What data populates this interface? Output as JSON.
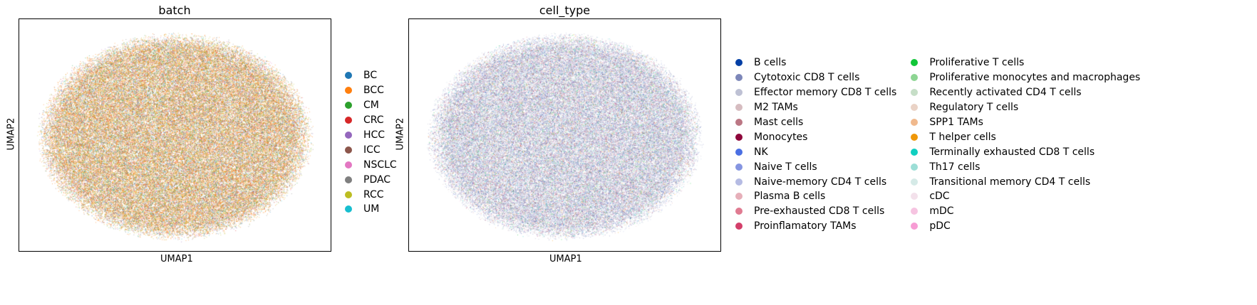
{
  "chart_data": [
    {
      "type": "scatter",
      "title": "batch",
      "xlabel": "UMAP1",
      "ylabel": "UMAP2",
      "grid": false,
      "legend_placement": "right",
      "legend_columns": 1,
      "categories": [
        {
          "name": "BC",
          "color": "#1f77b4"
        },
        {
          "name": "BCC",
          "color": "#ff7f0e"
        },
        {
          "name": "CM",
          "color": "#2ca02c"
        },
        {
          "name": "CRC",
          "color": "#d62728"
        },
        {
          "name": "HCC",
          "color": "#9467bd"
        },
        {
          "name": "ICC",
          "color": "#8c564b"
        },
        {
          "name": "NSCLC",
          "color": "#e377c2"
        },
        {
          "name": "PDAC",
          "color": "#7f7f7f"
        },
        {
          "name": "RCC",
          "color": "#bcbd22"
        },
        {
          "name": "UM",
          "color": "#17becf"
        }
      ]
    },
    {
      "type": "scatter",
      "title": "cell_type",
      "xlabel": "UMAP1",
      "ylabel": "UMAP2",
      "grid": false,
      "legend_placement": "right",
      "legend_columns": 2,
      "categories": [
        {
          "name": "B cells",
          "color": "#023fa5"
        },
        {
          "name": "Cytotoxic CD8 T cells",
          "color": "#7d87b9"
        },
        {
          "name": "Effector memory CD8 T cells",
          "color": "#bec1d4"
        },
        {
          "name": "M2 TAMs",
          "color": "#d6bcc0"
        },
        {
          "name": "Mast cells",
          "color": "#bb7784"
        },
        {
          "name": "Monocytes",
          "color": "#8e063b"
        },
        {
          "name": "NK",
          "color": "#4a6fe3"
        },
        {
          "name": "Naive T cells",
          "color": "#8595e1"
        },
        {
          "name": "Naive-memory CD4 T cells",
          "color": "#b5bbe3"
        },
        {
          "name": "Plasma B cells",
          "color": "#e6afb9"
        },
        {
          "name": "Pre-exhausted CD8 T cells",
          "color": "#e07b91"
        },
        {
          "name": "Proinflamatory TAMs",
          "color": "#d33f6a"
        },
        {
          "name": "Proliferative T cells",
          "color": "#11c638"
        },
        {
          "name": "Proliferative monocytes and macrophages",
          "color": "#8dd593"
        },
        {
          "name": "Recently activated CD4 T cells",
          "color": "#c6dec7"
        },
        {
          "name": "Regulatory T cells",
          "color": "#ead3c6"
        },
        {
          "name": "SPP1 TAMs",
          "color": "#f0b98d"
        },
        {
          "name": "T helper cells",
          "color": "#ef9708"
        },
        {
          "name": "Terminally exhausted CD8 T cells",
          "color": "#0fcfc0"
        },
        {
          "name": "Th17 cells",
          "color": "#9cded6"
        },
        {
          "name": "Transitional memory CD4 T cells",
          "color": "#d5eae7"
        },
        {
          "name": "cDC",
          "color": "#f3e1eb"
        },
        {
          "name": "mDC",
          "color": "#f6c4e1"
        },
        {
          "name": "pDC",
          "color": "#f79cd4"
        }
      ]
    }
  ]
}
